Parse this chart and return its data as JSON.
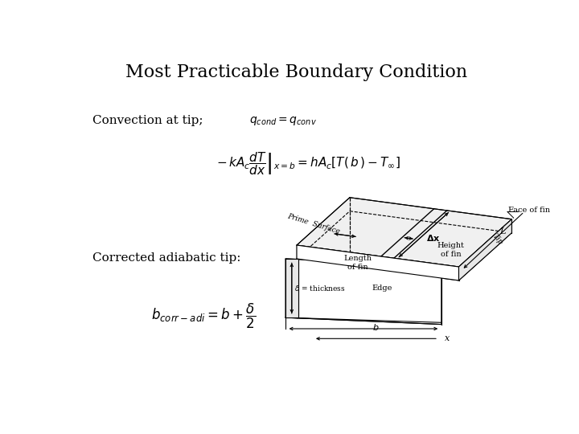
{
  "title": "Most Practicable Boundary Condition",
  "title_fontsize": 16,
  "background_color": "#ffffff",
  "text_color": "#000000",
  "convection_label": "Convection at tip;",
  "corrected_label": "Corrected adiabatic tip:"
}
